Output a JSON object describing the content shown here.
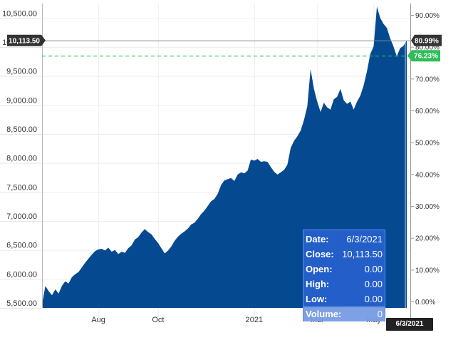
{
  "chart_data": {
    "type": "area",
    "color": "#054a91",
    "left_axis": {
      "ylim": [
        5500,
        10750
      ],
      "ticks": [
        "10,500.00",
        "10,000.00",
        "9,500.00",
        "9,000.00",
        "8,500.00",
        "8,000.00",
        "7,500.00",
        "7,000.00",
        "6,500.00",
        "6,000.00",
        "5,500.00"
      ],
      "tick_values": [
        10500,
        10000,
        9500,
        9000,
        8500,
        8000,
        7500,
        7000,
        6500,
        6000,
        5500
      ]
    },
    "right_axis": {
      "ticks": [
        "90.00%",
        "80.00%",
        "70.00%",
        "60.00%",
        "50.00%",
        "40.00%",
        "30.00%",
        "20.00%",
        "10.00%",
        "0.00%"
      ],
      "tick_values": [
        90,
        80,
        70,
        60,
        50,
        40,
        30,
        20,
        10,
        0
      ]
    },
    "x_ticks": [
      {
        "label": "Aug",
        "index": 17
      },
      {
        "label": "Oct",
        "index": 35
      },
      {
        "label": "2021",
        "index": 64
      },
      {
        "label": "Mar",
        "index": 83
      },
      {
        "label": "May",
        "index": 100
      }
    ],
    "values": [
      5560,
      5880,
      5790,
      5720,
      5820,
      5750,
      5880,
      5960,
      5920,
      6030,
      6080,
      6120,
      6200,
      6280,
      6350,
      6420,
      6480,
      6510,
      6520,
      6490,
      6540,
      6470,
      6500,
      6430,
      6470,
      6450,
      6530,
      6580,
      6680,
      6720,
      6800,
      6860,
      6810,
      6770,
      6690,
      6620,
      6530,
      6440,
      6490,
      6560,
      6660,
      6730,
      6780,
      6820,
      6870,
      6940,
      6970,
      7040,
      7120,
      7180,
      7260,
      7340,
      7380,
      7470,
      7620,
      7700,
      7720,
      7740,
      7690,
      7800,
      7840,
      7820,
      7870,
      8060,
      8040,
      8070,
      8020,
      8030,
      8020,
      7930,
      7850,
      7800,
      7840,
      7880,
      7970,
      8260,
      8380,
      8460,
      8560,
      8740,
      8980,
      9620,
      9280,
      9060,
      8880,
      9040,
      8960,
      8920,
      9100,
      9140,
      9280,
      9080,
      9020,
      9060,
      8920,
      9060,
      9160,
      9340,
      9580,
      9880,
      10010,
      10700,
      10500,
      10400,
      10330,
      10150,
      10010,
      9840,
      9980,
      10020,
      10113.5
    ],
    "reference_lines": {
      "current_value": 10113.5,
      "current_value_label": "10,113.50",
      "current_pct_label": "80.99%",
      "dashed_value": 9850,
      "dashed_pct_label": "76.23%",
      "dashed_color": "#2ebd59"
    }
  },
  "tooltip": {
    "rows": [
      {
        "label": "Date:",
        "value": "6/3/2021"
      },
      {
        "label": "Close:",
        "value": "10,113.50"
      },
      {
        "label": "Open:",
        "value": "0.00"
      },
      {
        "label": "High:",
        "value": "0.00"
      },
      {
        "label": "Low:",
        "value": "0.00"
      },
      {
        "label": "Volume:",
        "value": "0"
      }
    ]
  },
  "date_flag": "6/3/2021"
}
